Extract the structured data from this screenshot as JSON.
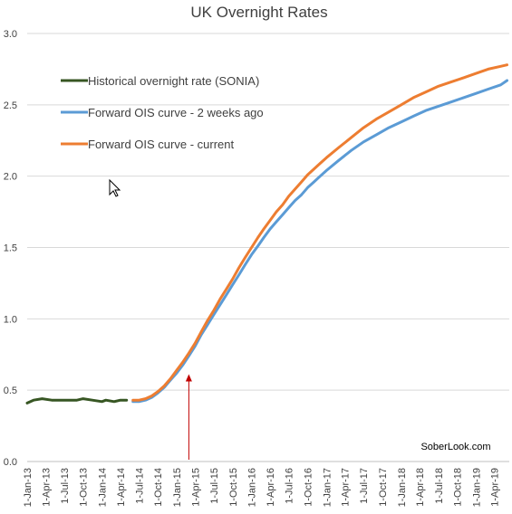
{
  "chart_data": {
    "type": "line",
    "title": "UK Overnight Rates",
    "xlabel": "",
    "ylabel": "",
    "ylim": [
      0,
      3
    ],
    "yticks": [
      "0.0",
      "0.5",
      "1.0",
      "1.5",
      "2.0",
      "2.5",
      "3.0"
    ],
    "xticks": [
      "1-Jan-13",
      "1-Apr-13",
      "1-Jul-13",
      "1-Oct-13",
      "1-Jan-14",
      "1-Apr-14",
      "1-Jul-14",
      "1-Oct-14",
      "1-Jan-15",
      "1-Apr-15",
      "1-Jul-15",
      "1-Oct-15",
      "1-Jan-16",
      "1-Apr-16",
      "1-Jul-16",
      "1-Oct-16",
      "1-Jan-17",
      "1-Apr-17",
      "1-Jul-17",
      "1-Oct-17",
      "1-Jan-18",
      "1-Apr-18",
      "1-Jul-18",
      "1-Oct-18",
      "1-Jan-19",
      "1-Apr-19"
    ],
    "grid": "horizontal",
    "legend_position": "top-left",
    "annotation": "SoberLook.com",
    "marker": {
      "type": "arrow",
      "date": "2015-03-01",
      "color": "#c00000"
    },
    "series": [
      {
        "name": "Historical overnight rate (SONIA)",
        "color": "#375623",
        "points": [
          [
            "2013-01-01",
            0.41
          ],
          [
            "2013-02-01",
            0.43
          ],
          [
            "2013-03-15",
            0.44
          ],
          [
            "2013-05-01",
            0.43
          ],
          [
            "2013-07-01",
            0.43
          ],
          [
            "2013-09-01",
            0.43
          ],
          [
            "2013-10-01",
            0.44
          ],
          [
            "2013-11-15",
            0.43
          ],
          [
            "2014-01-01",
            0.42
          ],
          [
            "2014-01-20",
            0.43
          ],
          [
            "2014-03-01",
            0.42
          ],
          [
            "2014-04-01",
            0.43
          ],
          [
            "2014-05-01",
            0.43
          ]
        ]
      },
      {
        "name": "Forward OIS curve - 2 weeks ago",
        "color": "#5b9bd5",
        "points": [
          [
            "2014-06-01",
            0.42
          ],
          [
            "2014-07-01",
            0.42
          ],
          [
            "2014-08-01",
            0.43
          ],
          [
            "2014-09-01",
            0.45
          ],
          [
            "2014-10-01",
            0.48
          ],
          [
            "2014-11-01",
            0.52
          ],
          [
            "2014-12-01",
            0.57
          ],
          [
            "2015-01-01",
            0.62
          ],
          [
            "2015-02-01",
            0.68
          ],
          [
            "2015-03-01",
            0.74
          ],
          [
            "2015-04-01",
            0.81
          ],
          [
            "2015-05-01",
            0.89
          ],
          [
            "2015-06-01",
            0.96
          ],
          [
            "2015-07-01",
            1.03
          ],
          [
            "2015-08-01",
            1.1
          ],
          [
            "2015-09-01",
            1.17
          ],
          [
            "2015-10-01",
            1.24
          ],
          [
            "2015-11-01",
            1.31
          ],
          [
            "2015-12-01",
            1.38
          ],
          [
            "2016-01-01",
            1.45
          ],
          [
            "2016-02-01",
            1.51
          ],
          [
            "2016-03-01",
            1.57
          ],
          [
            "2016-04-01",
            1.63
          ],
          [
            "2016-05-01",
            1.68
          ],
          [
            "2016-06-01",
            1.73
          ],
          [
            "2016-07-01",
            1.78
          ],
          [
            "2016-08-01",
            1.83
          ],
          [
            "2016-09-01",
            1.87
          ],
          [
            "2016-10-01",
            1.92
          ],
          [
            "2016-11-01",
            1.96
          ],
          [
            "2016-12-01",
            2.0
          ],
          [
            "2017-01-01",
            2.04
          ],
          [
            "2017-03-01",
            2.11
          ],
          [
            "2017-05-01",
            2.18
          ],
          [
            "2017-07-01",
            2.24
          ],
          [
            "2017-09-01",
            2.29
          ],
          [
            "2017-11-01",
            2.34
          ],
          [
            "2018-01-01",
            2.38
          ],
          [
            "2018-03-01",
            2.42
          ],
          [
            "2018-05-01",
            2.46
          ],
          [
            "2018-07-01",
            2.49
          ],
          [
            "2018-09-01",
            2.52
          ],
          [
            "2018-11-01",
            2.55
          ],
          [
            "2019-01-01",
            2.58
          ],
          [
            "2019-03-01",
            2.61
          ],
          [
            "2019-05-01",
            2.64
          ],
          [
            "2019-06-01",
            2.67
          ]
        ]
      },
      {
        "name": "Forward OIS curve - current",
        "color": "#ed7d31",
        "points": [
          [
            "2014-06-01",
            0.43
          ],
          [
            "2014-07-01",
            0.43
          ],
          [
            "2014-08-01",
            0.44
          ],
          [
            "2014-09-01",
            0.46
          ],
          [
            "2014-10-01",
            0.49
          ],
          [
            "2014-11-01",
            0.53
          ],
          [
            "2014-12-01",
            0.58
          ],
          [
            "2015-01-01",
            0.64
          ],
          [
            "2015-02-01",
            0.7
          ],
          [
            "2015-03-01",
            0.76
          ],
          [
            "2015-04-01",
            0.83
          ],
          [
            "2015-05-01",
            0.91
          ],
          [
            "2015-06-01",
            0.99
          ],
          [
            "2015-07-01",
            1.06
          ],
          [
            "2015-08-01",
            1.14
          ],
          [
            "2015-09-01",
            1.21
          ],
          [
            "2015-10-01",
            1.28
          ],
          [
            "2015-11-01",
            1.36
          ],
          [
            "2015-12-01",
            1.43
          ],
          [
            "2016-01-01",
            1.5
          ],
          [
            "2016-02-01",
            1.57
          ],
          [
            "2016-03-01",
            1.63
          ],
          [
            "2016-04-01",
            1.69
          ],
          [
            "2016-05-01",
            1.75
          ],
          [
            "2016-06-01",
            1.8
          ],
          [
            "2016-07-01",
            1.86
          ],
          [
            "2016-08-01",
            1.91
          ],
          [
            "2016-09-01",
            1.96
          ],
          [
            "2016-10-01",
            2.01
          ],
          [
            "2016-11-01",
            2.05
          ],
          [
            "2016-12-01",
            2.09
          ],
          [
            "2017-01-01",
            2.13
          ],
          [
            "2017-03-01",
            2.2
          ],
          [
            "2017-05-01",
            2.27
          ],
          [
            "2017-07-01",
            2.34
          ],
          [
            "2017-09-01",
            2.4
          ],
          [
            "2017-11-01",
            2.45
          ],
          [
            "2018-01-01",
            2.5
          ],
          [
            "2018-03-01",
            2.55
          ],
          [
            "2018-05-01",
            2.59
          ],
          [
            "2018-07-01",
            2.63
          ],
          [
            "2018-09-01",
            2.66
          ],
          [
            "2018-11-01",
            2.69
          ],
          [
            "2019-01-01",
            2.72
          ],
          [
            "2019-03-01",
            2.75
          ],
          [
            "2019-05-01",
            2.77
          ],
          [
            "2019-06-01",
            2.78
          ]
        ]
      }
    ]
  }
}
